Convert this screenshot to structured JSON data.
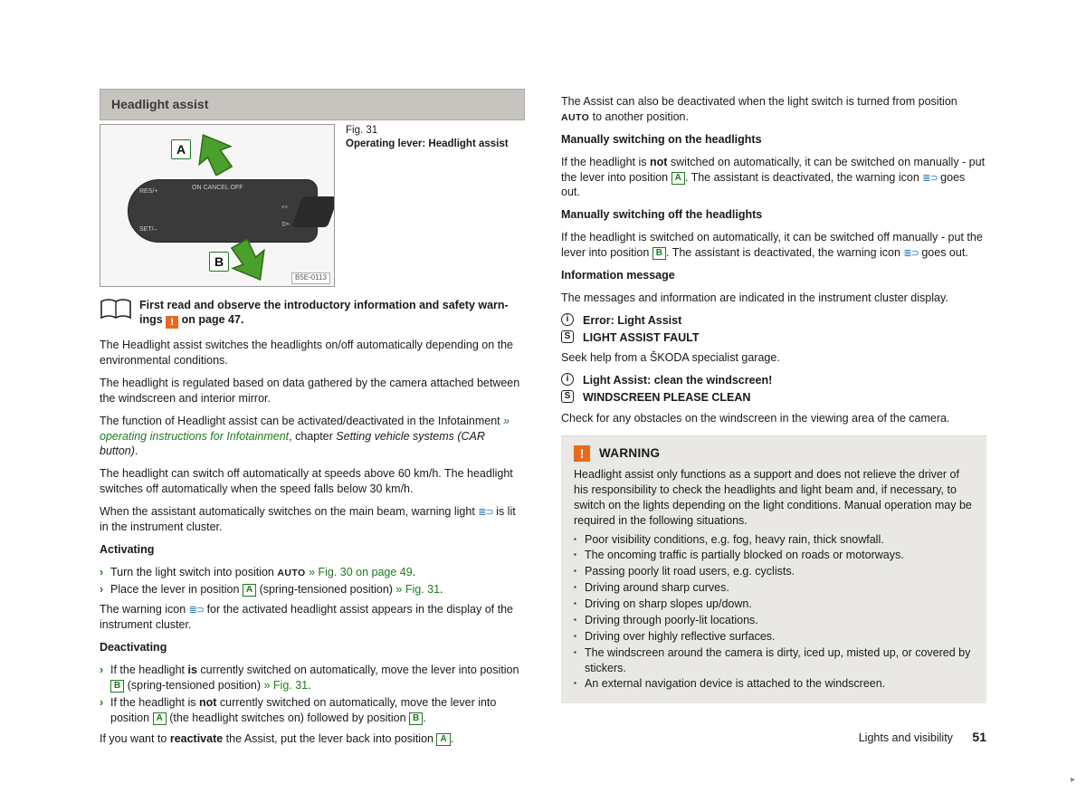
{
  "section_title": "Headlight assist",
  "figure": {
    "number": "Fig. 31",
    "caption": "Operating lever: Headlight assist",
    "code": "B5E-0113",
    "badge_a": "A",
    "badge_b": "B",
    "stalk_labels": {
      "res": "RES/+",
      "onoff": "ON  CANCEL  OFF",
      "set": "SET/–"
    }
  },
  "intro": {
    "line1": "First read and observe the introductory information and safety warn-",
    "line2_a": "ings ",
    "line2_b": " on page 47.",
    "warn_glyph": "!"
  },
  "col1": {
    "p1": "The Headlight assist switches the headlights on/off automatically depending on the environmental conditions.",
    "p2": "The headlight is regulated based on data gathered by the camera attached be­tween the windscreen and interior mirror.",
    "p3a": "The function of Headlight assist can be activated/deactivated in the Infotain­ment ",
    "p3b": "» operating instructions for Infotainment",
    "p3c": ", chapter ",
    "p3d": "Setting vehicle systems (CAR button)",
    "p3e": ".",
    "p4": "The headlight can switch off automatically at speeds above 60 km/h. The head­light switches off automatically when the speed falls below 30 km/h.",
    "p5a": "When the assistant automatically switches on the main beam, warning light ",
    "p5b": " is lit in the instrument cluster.",
    "activating_head": "Activating",
    "act1a": "Turn the light switch into position ",
    "act1_auto": "AUTO",
    "act1b": " » Fig. 30 on page 49",
    "act1c": ".",
    "act2a": "Place the lever in position ",
    "act2b": " (spring-tensioned position) ",
    "act2c": "» Fig. 31",
    "act2d": ".",
    "p6a": "The warning icon ",
    "p6b": " for the activated headlight assist appears in the display of the instrument cluster.",
    "deactivating_head": "Deactivating",
    "de1a": "If the headlight ",
    "de1b": "is",
    "de1c": " currently switched on automatically, move the lever into posi­tion ",
    "de1d": " (spring-tensioned position) ",
    "de1e": "» Fig. 31",
    "de1f": ".",
    "de2a": "If the headlight is ",
    "de2b": "not",
    "de2c": " currently switched on automatically, move the lever into position ",
    "de2d": " (the headlight switches on) followed by position ",
    "de2e": ".",
    "p7a": "If you want to ",
    "p7b": "reactivate",
    "p7c": " the Assist, put the lever back into position ",
    "p7d": "."
  },
  "col2": {
    "p1a": "The Assist can also be deactivated when the light switch is turned from position ",
    "p1_auto": "AUTO",
    "p1b": " to another position.",
    "h1": "Manually switching on the headlights",
    "p2a": "If the headlight is ",
    "p2b": "not",
    "p2c": " switched on automatically, it can be switched on manually - put the lever into position ",
    "p2d": ". The assistant is deactivated, the warning icon ",
    "p2e": " goes out.",
    "h2": "Manually switching off the headlights",
    "p3a": "If the headlight is switched on automatically, it can be switched off manually - put the lever into position ",
    "p3b": ". The assistant is deactivated, the warning icon ",
    "p3c": " goes out.",
    "h3": "Information message",
    "p4": "The messages and information are indicated in the instrument cluster display.",
    "info1_sym": "i",
    "info1_txt": "Error: Light Assist",
    "info2_sym": "S",
    "info2_txt": "LIGHT ASSIST FAULT",
    "p5": "Seek help from a ŠKODA specialist garage.",
    "info3_sym": "i",
    "info3_txt": "Light Assist: clean the windscreen!",
    "info4_sym": "S",
    "info4_txt": "WINDSCREEN PLEASE CLEAN",
    "p6": "Check for any obstacles on the windscreen in the viewing area of the camera."
  },
  "warning": {
    "glyph": "!",
    "title": "WARNING",
    "intro": "Headlight assist only functions as a support and does not relieve the driver of his responsibility to check the headlights and light beam and, if necessary, to switch on the lights depending on the light conditions. Manual operation may be required in the following situations.",
    "items": [
      "Poor visibility conditions, e.g. fog, heavy rain, thick snowfall.",
      "The oncoming traffic is partially blocked on roads or motorways.",
      "Passing poorly lit road users, e.g. cyclists.",
      "Driving around sharp curves.",
      "Driving on sharp slopes up/down.",
      "Driving through poorly-lit locations.",
      "Driving over highly reflective surfaces.",
      "The windscreen around the camera is dirty, iced up, misted up, or covered by stickers.",
      "An external navigation device is attached to the windscreen."
    ],
    "cont": "▸"
  },
  "footer": {
    "chapter": "Lights and visibility",
    "page": "51"
  },
  "letters": {
    "A": "A",
    "B": "B"
  },
  "beam_glyph": "≣⊃"
}
